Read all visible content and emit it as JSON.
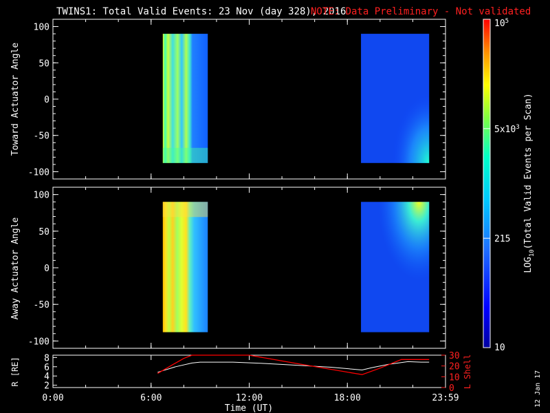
{
  "title": {
    "main": "TWINS1: Total Valid Events: 23 Nov (day 328), 2016",
    "note": "NOTE: Data Preliminary - Not validated",
    "note_color": "#ff2020"
  },
  "stamp": "12 Jan 17",
  "chart_data": [
    {
      "type": "heatmap",
      "panel": "top",
      "ylabel": "Toward Actuator Angle",
      "ylim": [
        -110,
        110
      ],
      "yticks": [
        "100",
        "50",
        "0",
        "-50",
        "-100"
      ],
      "ytick_values": [
        100,
        50,
        0,
        -50,
        -100
      ],
      "y_data_range": [
        -88,
        90
      ],
      "xlim_hours": [
        0,
        24
      ],
      "data_blocks": [
        {
          "start": "06:43",
          "end": "09:28",
          "level": "high",
          "note": "vertical cyan/yellow streaks"
        },
        {
          "start": "18:50",
          "end": "23:00",
          "level": "low",
          "note": "mostly blue, lighter patch lower-right"
        }
      ]
    },
    {
      "type": "heatmap",
      "panel": "middle",
      "ylabel": "Away Actuator Angle",
      "ylim": [
        -110,
        110
      ],
      "yticks": [
        "100",
        "50",
        "0",
        "-50",
        "-100"
      ],
      "ytick_values": [
        100,
        50,
        0,
        -50,
        -100
      ],
      "y_data_range": [
        -88,
        90
      ],
      "xlim_hours": [
        0,
        24
      ],
      "data_blocks": [
        {
          "start": "06:43",
          "end": "09:28",
          "level": "high",
          "note": "yellow/orange streaks"
        },
        {
          "start": "18:50",
          "end": "23:00",
          "level": "low",
          "note": "blue with brighter patch upper-right"
        }
      ]
    },
    {
      "type": "line",
      "panel": "bottom",
      "ylabel_left": "R [RE]",
      "ylabel_right": "L Shell",
      "left_ticks": [
        "8",
        "6",
        "4",
        "2"
      ],
      "left_tick_values": [
        8,
        6,
        4,
        2
      ],
      "left_ylim": [
        1.5,
        8.5
      ],
      "right_ticks": [
        "30",
        "20",
        "10",
        "0"
      ],
      "right_tick_values": [
        30,
        20,
        10,
        0
      ],
      "right_ylim": [
        0,
        30
      ],
      "series": [
        {
          "name": "R",
          "color": "#ffffff",
          "x_hours": [
            6.4,
            7.5,
            8.5,
            9.0,
            11.0,
            13.0,
            15.0,
            17.0,
            18.9,
            19.5,
            20.5,
            21.7,
            22.5,
            23.0
          ],
          "y": [
            4.8,
            6.0,
            6.8,
            7.0,
            7.0,
            6.7,
            6.3,
            5.9,
            5.3,
            5.8,
            6.5,
            7.1,
            7.0,
            7.0
          ]
        },
        {
          "name": "L Shell",
          "color": "#ff0000",
          "x_hours": [
            6.4,
            7.3,
            8.0,
            8.5,
            8.55,
            11.95,
            12.0,
            15.0,
            18.5,
            18.9,
            20.0,
            21.3,
            23.0
          ],
          "y": [
            13,
            21,
            27,
            30,
            30,
            30,
            30,
            22,
            13,
            12,
            18,
            26,
            26
          ]
        }
      ],
      "xticks": [
        "0:00",
        "6:00",
        "12:00",
        "18:00",
        "23:59"
      ],
      "xtick_hours": [
        0,
        6,
        12,
        18,
        24
      ],
      "xlabel": "Time (UT)"
    }
  ],
  "colorbar": {
    "label": "LOG10(Total Valid Events per Scan)",
    "label_prefix": "LOG",
    "label_sub": "10",
    "label_suffix": "(Total Valid Events per Scan)",
    "ticks": [
      {
        "label": "10",
        "frac": 0.0
      },
      {
        "label": "215",
        "frac": 0.333
      },
      {
        "label": "5x103",
        "frac": 0.667
      },
      {
        "label": "105",
        "frac": 1.0
      }
    ],
    "tick_mant_5k": "5x10",
    "tick_exp_5k": "3",
    "tick_mant_max": "10",
    "tick_exp_max": "5",
    "tick_min": "10",
    "tick_215": "215"
  }
}
